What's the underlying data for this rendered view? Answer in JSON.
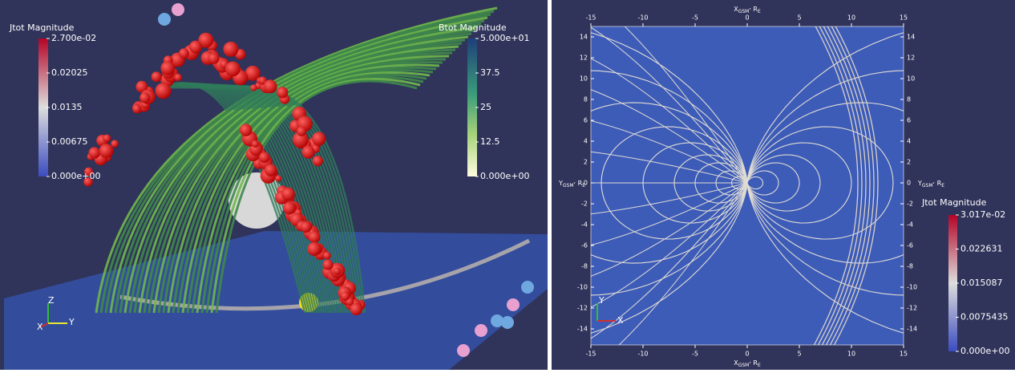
{
  "left_view": {
    "jtot_colorbar": {
      "title": "Jtot Magnitude",
      "labels": [
        "2.700e-02",
        "0.02025",
        "0.0135",
        "0.00675",
        "0.000e+00"
      ]
    },
    "btot_colorbar": {
      "title": "Btot Magnitude",
      "labels": [
        "5.000e+01",
        "37.5",
        "25",
        "12.5",
        "0.000e+00"
      ]
    },
    "triad": {
      "z": "Z",
      "x": "X",
      "y": "Y"
    }
  },
  "right_view": {
    "x_ticks": [
      "-15",
      "-10",
      "-5",
      "0",
      "5",
      "10",
      "15"
    ],
    "y_ticks": [
      "14",
      "12",
      "10",
      "8",
      "6",
      "4",
      "2",
      "0",
      "-2",
      "-4",
      "-6",
      "-8",
      "-10",
      "-12",
      "-14"
    ],
    "x_title": {
      "symbol": "X",
      "sub": "GSM",
      "sep": ", ",
      "unit": "R",
      "unit_sub": "E"
    },
    "y_title": {
      "symbol": "Y",
      "sub": "GSM",
      "sep": ", ",
      "unit": "R",
      "unit_sub": "E"
    },
    "jtot_colorbar": {
      "title": "Jtot Magnitude",
      "labels": [
        "3.017e-02",
        "0.022631",
        "0.015087",
        "0.0075435",
        "0.000e+00"
      ]
    },
    "triad": {
      "y": "Y",
      "x": "X"
    }
  }
}
